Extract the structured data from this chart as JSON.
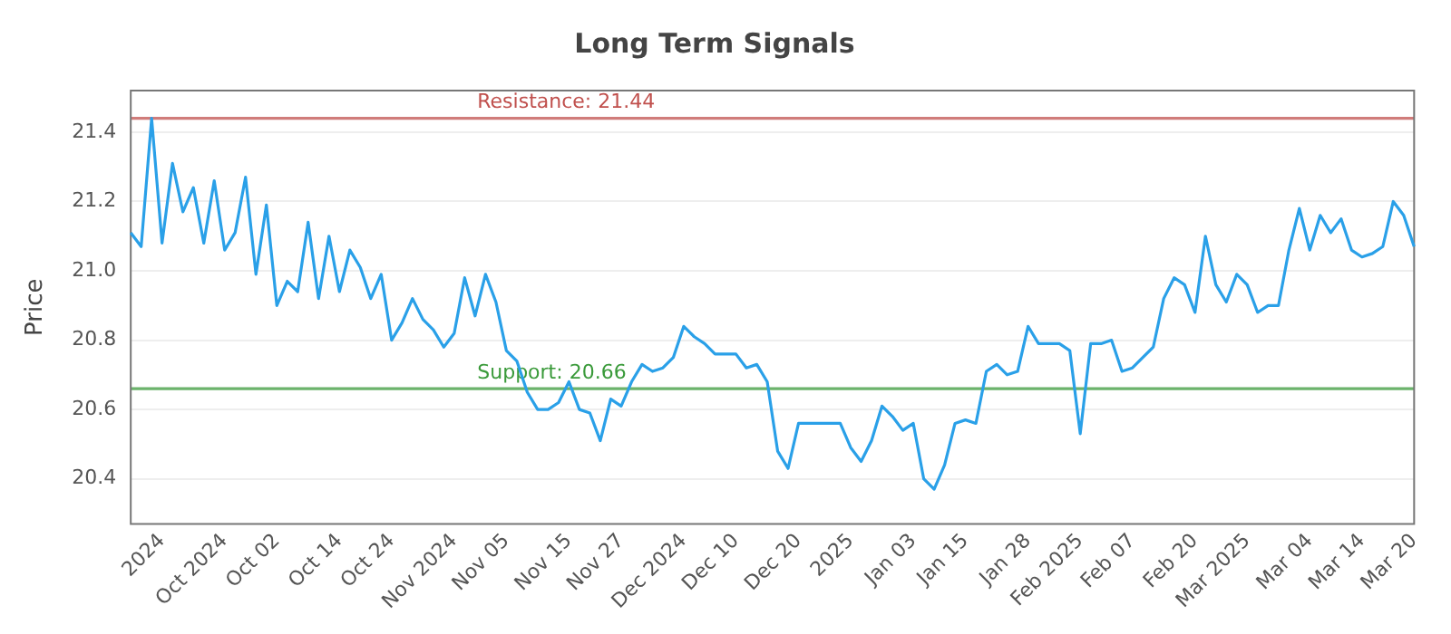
{
  "chart_data": {
    "type": "line",
    "title": "Long Term Signals",
    "ylabel": "Price",
    "categories": [
      null,
      null,
      null,
      "2024",
      null,
      null,
      null,
      null,
      null,
      "Oct 2024",
      null,
      null,
      null,
      null,
      "Oct 02",
      null,
      null,
      null,
      null,
      null,
      "Oct 14",
      null,
      null,
      null,
      null,
      "Oct 24",
      null,
      null,
      null,
      null,
      null,
      "Nov 2024",
      null,
      null,
      null,
      null,
      "Nov 05",
      null,
      null,
      null,
      null,
      null,
      "Nov 15",
      null,
      null,
      null,
      null,
      "Nov 27",
      null,
      null,
      null,
      null,
      null,
      "Dec 2024",
      null,
      null,
      null,
      null,
      "Dec 10",
      null,
      null,
      null,
      null,
      null,
      "Dec 20",
      null,
      null,
      null,
      null,
      "2025",
      null,
      null,
      null,
      null,
      null,
      "Jan 03",
      null,
      null,
      null,
      null,
      "Jan 15",
      null,
      null,
      null,
      null,
      null,
      "Jan 28",
      null,
      null,
      null,
      null,
      "Feb 2025",
      null,
      null,
      null,
      null,
      "Feb 07",
      null,
      null,
      null,
      null,
      null,
      "Feb 20",
      null,
      null,
      null,
      null,
      "Mar 2025",
      null,
      null,
      null,
      null,
      null,
      "Mar 04",
      null,
      null,
      null,
      null,
      "Mar 14",
      null,
      null,
      null,
      null,
      "Mar 20"
    ],
    "series": [
      {
        "color": "#2aa0e8",
        "values": [
          21.11,
          21.07,
          21.44,
          21.08,
          21.31,
          21.17,
          21.24,
          21.08,
          21.26,
          21.06,
          21.11,
          21.27,
          20.99,
          21.19,
          20.9,
          20.97,
          20.94,
          21.14,
          20.92,
          21.1,
          20.94,
          21.06,
          21.01,
          20.92,
          20.99,
          20.8,
          20.85,
          20.92,
          20.86,
          20.83,
          20.78,
          20.82,
          20.98,
          20.87,
          20.99,
          20.91,
          20.77,
          20.74,
          20.65,
          20.6,
          20.6,
          20.62,
          20.68,
          20.6,
          20.59,
          20.51,
          20.63,
          20.61,
          20.68,
          20.73,
          20.71,
          20.72,
          20.75,
          20.84,
          20.81,
          20.79,
          20.76,
          20.76,
          20.76,
          20.72,
          20.73,
          20.68,
          20.48,
          20.43,
          20.56,
          20.56,
          20.56,
          20.56,
          20.56,
          20.49,
          20.45,
          20.51,
          20.61,
          20.58,
          20.54,
          20.56,
          20.4,
          20.37,
          20.44,
          20.56,
          20.57,
          20.56,
          20.71,
          20.73,
          20.7,
          20.71,
          20.84,
          20.79,
          20.79,
          20.79,
          20.77,
          20.53,
          20.79,
          20.79,
          20.8,
          20.71,
          20.72,
          20.75,
          20.78,
          20.92,
          20.98,
          20.96,
          20.88,
          21.1,
          20.96,
          20.91,
          20.99,
          20.96,
          20.88,
          20.9,
          20.9,
          21.06,
          21.18,
          21.06,
          21.16,
          21.11,
          21.15,
          21.06,
          21.04,
          21.05,
          21.07,
          21.2,
          21.16,
          21.07
        ]
      }
    ],
    "ylim": [
      20.27,
      21.52
    ],
    "yticks": [
      {
        "value": 20.4,
        "label": "20.4"
      },
      {
        "value": 20.6,
        "label": "20.6"
      },
      {
        "value": 20.8,
        "label": "20.8"
      },
      {
        "value": 21,
        "label": "21.0"
      },
      {
        "value": 21.2,
        "label": "21.2"
      },
      {
        "value": 21.4,
        "label": "21.4"
      }
    ],
    "ref_lines": [
      {
        "axis": "y",
        "value": 21.44,
        "label": "Resistance: 21.44",
        "color": "#c0504d"
      },
      {
        "axis": "y",
        "value": 20.66,
        "label": "Support: 20.66",
        "color": "#3a9a3a"
      }
    ],
    "grid": "y",
    "legend": false,
    "marker": "none",
    "line_style": "solid"
  }
}
